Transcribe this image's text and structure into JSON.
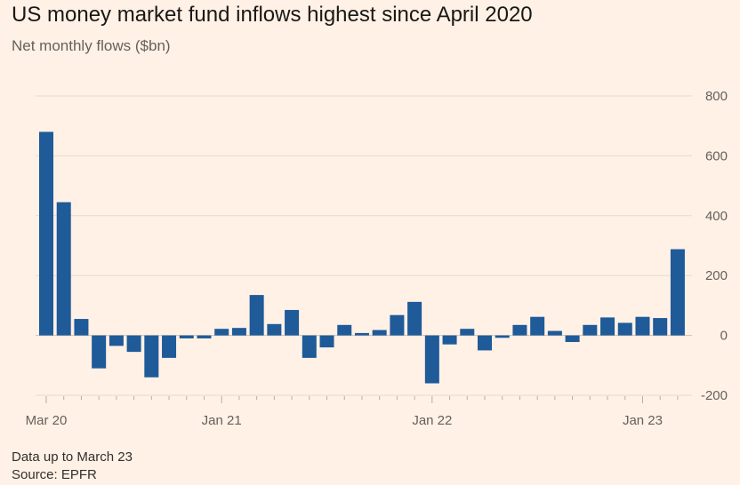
{
  "title": "US money market fund inflows highest since April 2020",
  "subtitle": "Net monthly flows ($bn)",
  "footer": {
    "note": "Data up to March 23",
    "source": "Source: EPFR"
  },
  "colors": {
    "bar": "#1f5a99",
    "grid": "#e6d9ce",
    "axis": "#66605c",
    "background": "#fff1e5"
  },
  "chart_data": {
    "type": "bar",
    "title": "US money market fund inflows highest since April 2020",
    "subtitle": "Net monthly flows ($bn)",
    "xlabel": "",
    "ylabel": "Net monthly flows ($bn)",
    "ylim": [
      -200,
      800
    ],
    "yticks": [
      800,
      600,
      400,
      200,
      0,
      -200
    ],
    "grid": true,
    "categories": [
      "Mar 20",
      "Apr 20",
      "May 20",
      "Jun 20",
      "Jul 20",
      "Aug 20",
      "Sep 20",
      "Oct 20",
      "Nov 20",
      "Dec 20",
      "Jan 21",
      "Feb 21",
      "Mar 21",
      "Apr 21",
      "May 21",
      "Jun 21",
      "Jul 21",
      "Aug 21",
      "Sep 21",
      "Oct 21",
      "Nov 21",
      "Dec 21",
      "Jan 22",
      "Feb 22",
      "Mar 22",
      "Apr 22",
      "May 22",
      "Jun 22",
      "Jul 22",
      "Aug 22",
      "Sep 22",
      "Oct 22",
      "Nov 22",
      "Dec 22",
      "Jan 23",
      "Feb 23",
      "Mar 23"
    ],
    "values": [
      680,
      445,
      55,
      -110,
      -35,
      -55,
      -140,
      -75,
      -10,
      -10,
      22,
      25,
      135,
      38,
      85,
      -75,
      -40,
      35,
      8,
      18,
      68,
      112,
      -160,
      -30,
      22,
      -50,
      -8,
      35,
      62,
      15,
      -22,
      35,
      60,
      42,
      62,
      58,
      288
    ],
    "xtick_labels": [
      {
        "label": "Mar 20",
        "index": 0
      },
      {
        "label": "Jan 21",
        "index": 10
      },
      {
        "label": "Jan 22",
        "index": 22
      },
      {
        "label": "Jan 23",
        "index": 34
      }
    ]
  }
}
